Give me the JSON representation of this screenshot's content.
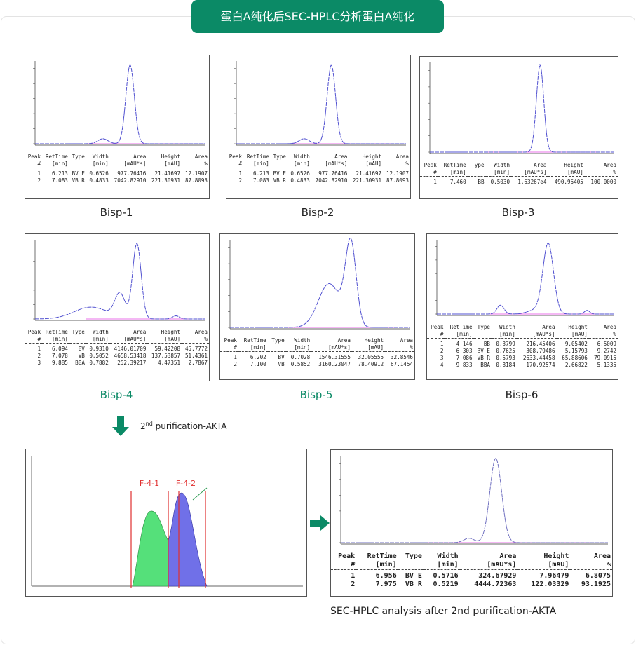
{
  "title": "蛋白A纯化后SEC-HPLC分析蛋白A纯化",
  "table_header": [
    {
      "top": "Peak",
      "bottom": "#"
    },
    {
      "top": "RetTime",
      "bottom": "[min]"
    },
    {
      "top": "Type"
    },
    {
      "top": "Width",
      "bottom": "[min]"
    },
    {
      "top": "Area",
      "bottom": "[mAU*s]"
    },
    {
      "top": "Height",
      "bottom": "[mAU]"
    },
    {
      "top": "Area",
      "bottom": "%"
    }
  ],
  "panels": [
    {
      "label": "Bisp-1",
      "rows": [
        [
          "1",
          "6.213",
          "BV E",
          "0.6526",
          "977.76416",
          "21.41697",
          "12.1907"
        ],
        [
          "2",
          "7.083",
          "VB R",
          "0.4833",
          "7042.82910",
          "221.30931",
          "87.8093"
        ]
      ]
    },
    {
      "label": "Bisp-2",
      "rows": [
        [
          "1",
          "6.213",
          "BV E",
          "0.6526",
          "977.76416",
          "21.41697",
          "12.1907"
        ],
        [
          "2",
          "7.083",
          "VB R",
          "0.4833",
          "7042.82910",
          "221.30931",
          "87.8093"
        ]
      ]
    },
    {
      "label": "Bisp-3",
      "rows": [
        [
          "1",
          "7.460",
          "BB",
          "0.5030",
          "1.63267e4",
          "490.96405",
          "100.0000"
        ]
      ]
    },
    {
      "label": "Bisp-4",
      "rows": [
        [
          "1",
          "6.094",
          "BV",
          "0.9310",
          "4146.01709",
          "59.42208",
          "45.7772"
        ],
        [
          "2",
          "7.078",
          "VB",
          "0.5052",
          "4658.53418",
          "137.53857",
          "51.4361"
        ],
        [
          "3",
          "9.885",
          "BBA",
          "0.7882",
          "252.39217",
          "4.47351",
          "2.7867"
        ]
      ]
    },
    {
      "label": "Bisp-5",
      "rows": [
        [
          "1",
          "6.202",
          "BV",
          "0.7028",
          "1546.31555",
          "32.05555",
          "32.8546"
        ],
        [
          "2",
          "7.100",
          "VB",
          "0.5852",
          "3160.23047",
          "78.40912",
          "67.1454"
        ]
      ]
    },
    {
      "label": "Bisp-6",
      "rows": [
        [
          "1",
          "4.146",
          "BB",
          "0.3799",
          "216.45406",
          "9.05402",
          "6.5009"
        ],
        [
          "2",
          "6.303",
          "BV E",
          "0.7625",
          "308.79486",
          "5.15793",
          "9.2742"
        ],
        [
          "3",
          "7.086",
          "VB R",
          "0.5793",
          "2633.44458",
          "65.88606",
          "79.0915"
        ],
        [
          "4",
          "9.833",
          "BBA",
          "0.8184",
          "170.92574",
          "2.66822",
          "5.1335"
        ]
      ]
    }
  ],
  "step": {
    "num": "2",
    "sup": "nd",
    "text": "purification-AKTA"
  },
  "akta": {
    "fractions": [
      "F-4-1",
      "F-4-2"
    ]
  },
  "final": {
    "rows": [
      [
        "1",
        "6.956",
        "BV E",
        "0.5716",
        "324.67929",
        "7.96479",
        "6.8075"
      ],
      [
        "2",
        "7.975",
        "VB R",
        "0.5219",
        "4444.72363",
        "122.03329",
        "93.1925"
      ]
    ],
    "caption": "SEC-HPLC analysis after 2nd purification-AKTA"
  }
}
